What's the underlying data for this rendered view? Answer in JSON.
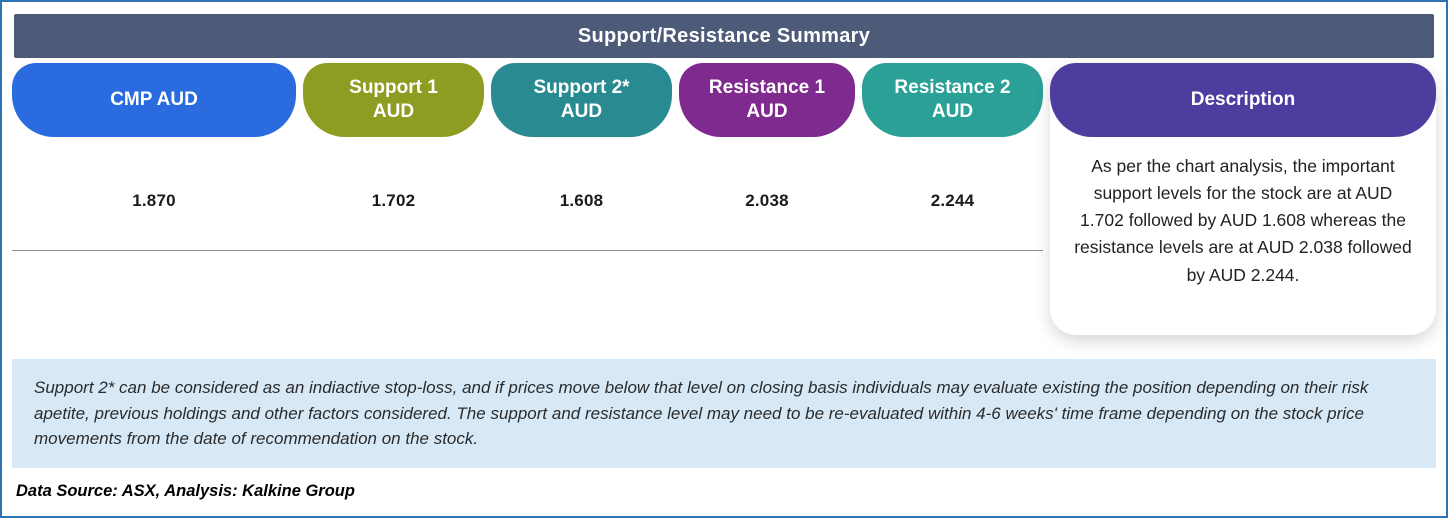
{
  "accent": {
    "frame_border": "#2e74b5",
    "title_bar_bg": "#4d5a78",
    "footnote_bg": "#d7e9f7",
    "divider": "#8f8f8f"
  },
  "title": "Support/Resistance Summary",
  "table": {
    "columns": [
      {
        "id": "cmp",
        "label_line1": "CMP AUD",
        "label_line2": "",
        "value": "1.870",
        "color": "#2a6cdf"
      },
      {
        "id": "support1",
        "label_line1": "Support 1",
        "label_line2": "AUD",
        "value": "1.702",
        "color": "#8e9c21"
      },
      {
        "id": "support2",
        "label_line1": "Support 2*",
        "label_line2": "AUD",
        "value": "1.608",
        "color": "#2a8a92"
      },
      {
        "id": "resistance1",
        "label_line1": "Resistance 1",
        "label_line2": "AUD",
        "value": "2.038",
        "color": "#7e2a8e"
      },
      {
        "id": "resistance2",
        "label_line1": "Resistance 2",
        "label_line2": "AUD",
        "value": "2.244",
        "color": "#2aa096"
      }
    ],
    "description": {
      "header": "Description",
      "header_color": "#4e3c9f",
      "text": "As per the chart analysis, the important support levels for the stock are at AUD 1.702 followed by AUD 1.608 whereas the resistance levels are at AUD 2.038 followed by AUD 2.244."
    }
  },
  "footnote": "Support 2* can be considered as an indiactive stop-loss, and if prices move below that level on closing basis individuals may evaluate existing the position depending on their risk apetite, previous holdings and other factors considered. The support and resistance level may need to be re-evaluated within 4-6 weeks' time frame depending on the stock price movements from  the date of recommendation on the stock.",
  "source": "Data Source: ASX, Analysis: Kalkine Group",
  "chart_data": {
    "type": "table",
    "title": "Support/Resistance Summary",
    "columns": [
      "CMP AUD",
      "Support 1 AUD",
      "Support 2* AUD",
      "Resistance 1 AUD",
      "Resistance 2 AUD",
      "Description"
    ],
    "rows": [
      [
        "1.870",
        "1.702",
        "1.608",
        "2.038",
        "2.244",
        "As per the chart analysis, the important support levels for the stock are at AUD 1.702 followed by AUD 1.608 whereas the resistance levels are at AUD 2.038 followed by AUD 2.244."
      ]
    ]
  }
}
